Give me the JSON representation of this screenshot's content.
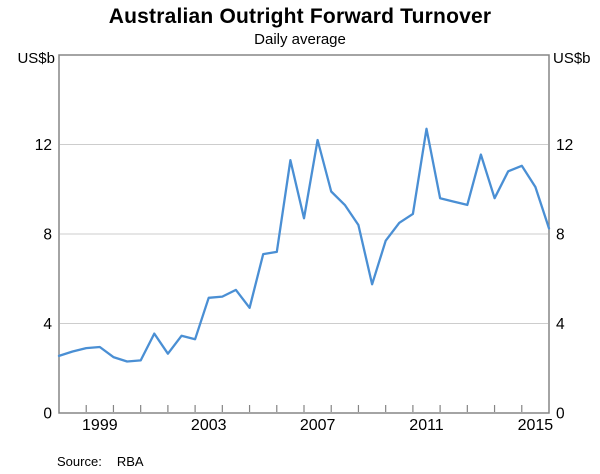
{
  "title": "Australian Outright Forward Turnover",
  "subtitle": "Daily average",
  "axes": {
    "left_unit": "US$b",
    "right_unit": "US$b"
  },
  "source": {
    "label": "Source:",
    "value": "RBA"
  },
  "chart_data": {
    "type": "line",
    "title": "Australian Outright Forward Turnover",
    "subtitle": "Daily average",
    "ylabel": "US$b",
    "frequency": "semiannual",
    "grid": "horizontal",
    "legend": "none",
    "line_color": "#4a8fd4",
    "grid_color": "#cdcdcd",
    "frame_color": "#858585",
    "ylim": [
      0,
      16
    ],
    "gridline_values": [
      4,
      8,
      12
    ],
    "y_axis_labels": [
      0,
      4,
      8,
      12
    ],
    "x_range_years": [
      1998,
      2016
    ],
    "x_year_tick_interval": 1,
    "x_year_labels": [
      1999,
      2003,
      2007,
      2011,
      2015
    ],
    "periods": [
      "1997 H2",
      "1998 H1",
      "1998 H2",
      "1999 H1",
      "1999 H2",
      "2000 H1",
      "2000 H2",
      "2001 H1",
      "2001 H2",
      "2002 H1",
      "2002 H2",
      "2003 H1",
      "2003 H2",
      "2004 H1",
      "2004 H2",
      "2005 H1",
      "2005 H2",
      "2006 H1",
      "2006 H2",
      "2007 H1",
      "2007 H2",
      "2008 H1",
      "2008 H2",
      "2009 H1",
      "2009 H2",
      "2010 H1",
      "2010 H2",
      "2011 H1",
      "2011 H2",
      "2012 H1",
      "2012 H2",
      "2013 H1",
      "2013 H2",
      "2014 H1",
      "2014 H2",
      "2015 H1",
      "2015 H2"
    ],
    "values": [
      2.55,
      2.75,
      2.9,
      2.95,
      2.5,
      2.3,
      2.35,
      3.55,
      2.65,
      3.45,
      3.3,
      5.15,
      5.2,
      5.5,
      4.7,
      7.1,
      7.2,
      11.3,
      8.7,
      12.2,
      9.9,
      9.3,
      8.4,
      5.75,
      7.7,
      8.5,
      8.9,
      12.7,
      9.6,
      9.45,
      9.3,
      11.55,
      9.6,
      10.8,
      11.05,
      10.1,
      8.25
    ]
  }
}
